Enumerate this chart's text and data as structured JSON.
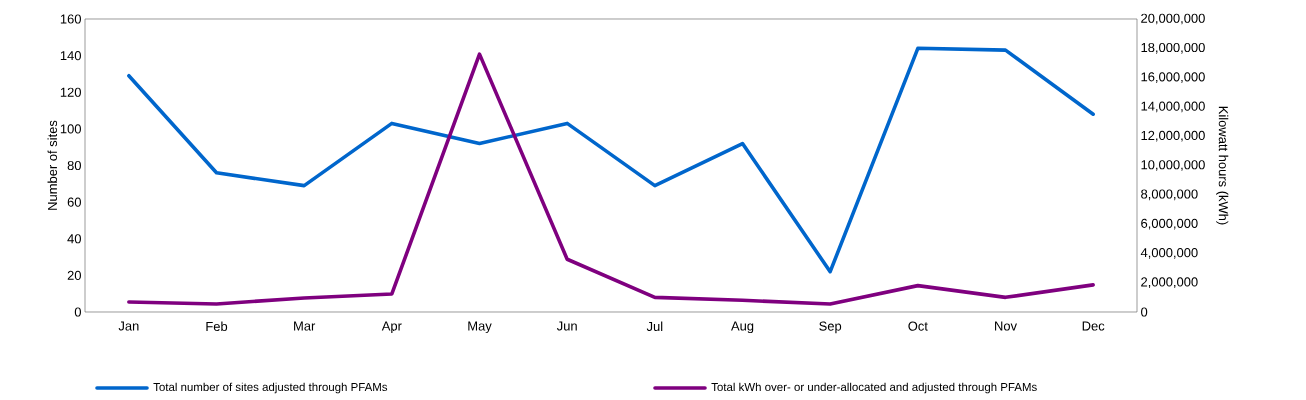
{
  "chart_data": {
    "type": "line",
    "ylabel": "Number of sites",
    "y2label": "Kilowatt hours (kWh)",
    "categories": [
      "Jan",
      "Feb",
      "Mar",
      "Apr",
      "May",
      "Jun",
      "Jul",
      "Aug",
      "Sep",
      "Oct",
      "Nov",
      "Dec"
    ],
    "series": [
      {
        "name": "Total number of sites adjusted through PFAMs",
        "color": "#0066cc",
        "values": [
          129,
          76,
          69,
          103,
          92,
          103,
          69,
          92,
          22,
          144,
          143,
          108
        ]
      },
      {
        "name": "Total kWh over- or under-allocated and adjusted through PFAMs",
        "color": "#7f007f",
        "axis": "y2",
        "values": [
          680000,
          550000,
          960000,
          1230000,
          17600000,
          3600000,
          1000000,
          800000,
          550000,
          1800000,
          1000000,
          1850000
        ]
      }
    ],
    "ylim": [
      0,
      160
    ],
    "yticks": [
      0,
      20,
      40,
      60,
      80,
      100,
      120,
      140,
      160
    ],
    "y2lim": [
      0,
      20000000
    ],
    "y2ticks": [
      0,
      {
        "value": 2000000,
        "label": "2,000,000"
      },
      {
        "value": 4000000,
        "label": "4,000,000"
      },
      {
        "value": 6000000,
        "label": "6,000,000"
      },
      {
        "value": 8000000,
        "label": "8,000,000"
      },
      {
        "value": 10000000,
        "label": "10,000,000"
      },
      {
        "value": 12000000,
        "label": "12,000,000"
      },
      {
        "value": 14000000,
        "label": "14,000,000"
      },
      {
        "value": 16000000,
        "label": "16,000,000"
      },
      {
        "value": 18000000,
        "label": "18,000,000"
      },
      {
        "value": 20000000,
        "label": "20,000,000"
      }
    ],
    "legend": "bottom"
  }
}
